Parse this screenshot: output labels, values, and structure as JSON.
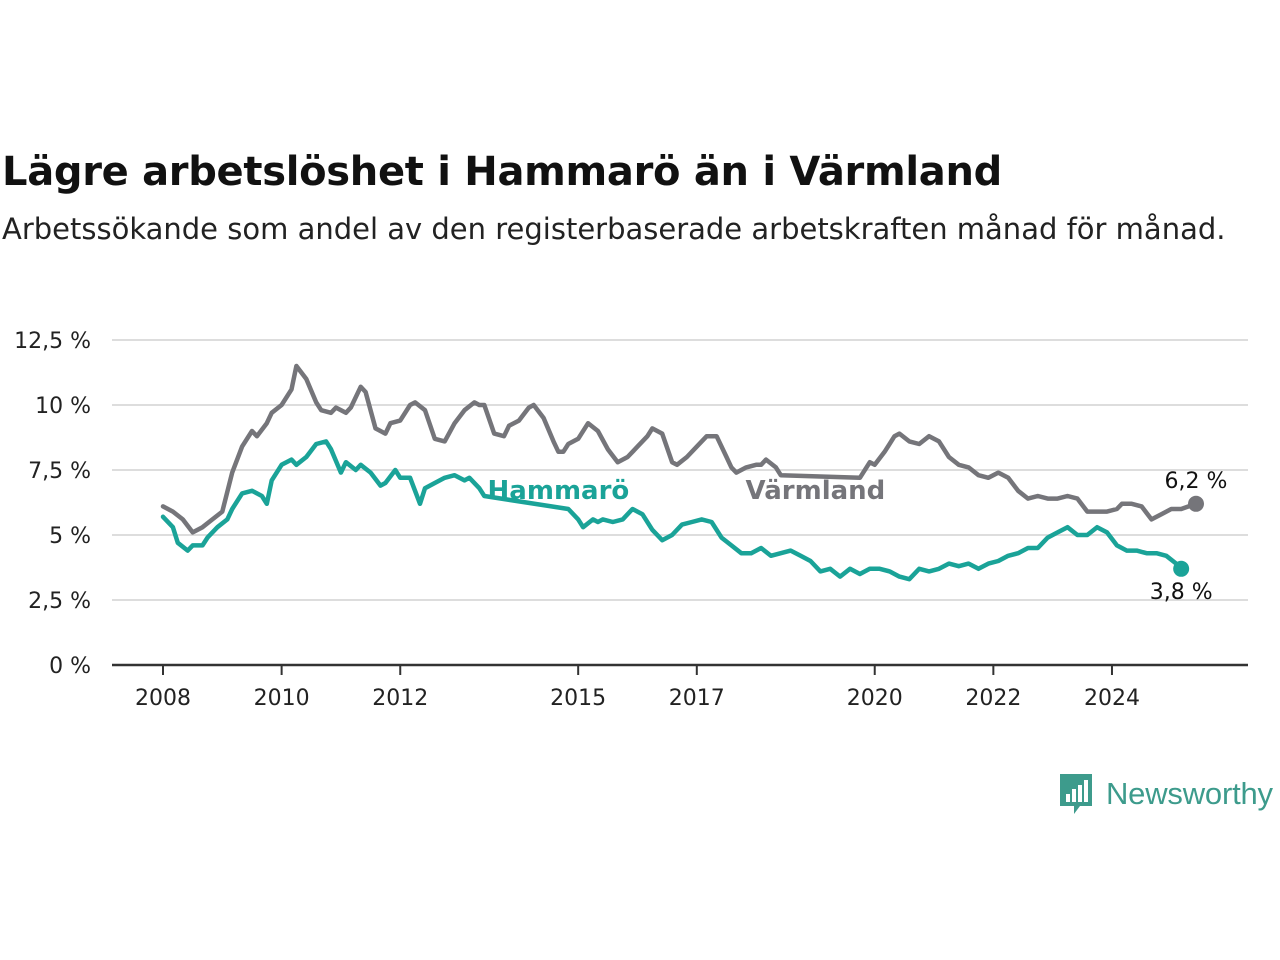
{
  "title": "Lägre arbetslöshet i Hammarö än i Värmland",
  "subtitle": "Arbetssökande som andel av den registerbaserade arbetskraften månad för månad.",
  "brand": {
    "name": "Newsworthy"
  },
  "colors": {
    "hammaro": "#1aa398",
    "varmland": "#75757a",
    "grid": "#dddddd",
    "axis": "#333333",
    "brand": "#3d9b8c"
  },
  "chart_data": {
    "type": "line",
    "title": "Lägre arbetslöshet i Hammarö än i Värmland",
    "subtitle": "Arbetssökande som andel av den registerbaserade arbetskraften månad för månad.",
    "xlabel": "",
    "ylabel": "",
    "y_unit": "%",
    "ylim": [
      0,
      12.5
    ],
    "xlim": [
      "2008-01",
      "2025-06"
    ],
    "grid": true,
    "y_ticks": [
      0,
      2.5,
      5,
      7.5,
      10,
      12.5
    ],
    "y_tick_labels": [
      "0 %",
      "2,5 %",
      "5 %",
      "7,5 %",
      "10 %",
      "12,5 %"
    ],
    "x_ticks": [
      "2008-01",
      "2010-01",
      "2012-01",
      "2015-01",
      "2017-01",
      "2020-01",
      "2022-01",
      "2024-01"
    ],
    "x_tick_labels": [
      "2008",
      "2010",
      "2012",
      "2015",
      "2017",
      "2020",
      "2022",
      "2024"
    ],
    "series": [
      {
        "name": "Värmland",
        "color": "#75757a",
        "end_label": "6,2 %",
        "points": [
          [
            "2008-01",
            6.1
          ],
          [
            "2008-03",
            5.9
          ],
          [
            "2008-05",
            5.6
          ],
          [
            "2008-07",
            5.1
          ],
          [
            "2008-09",
            5.3
          ],
          [
            "2008-11",
            5.6
          ],
          [
            "2009-01",
            5.9
          ],
          [
            "2009-03",
            7.4
          ],
          [
            "2009-05",
            8.4
          ],
          [
            "2009-07",
            9.0
          ],
          [
            "2009-08",
            8.8
          ],
          [
            "2009-10",
            9.3
          ],
          [
            "2009-11",
            9.7
          ],
          [
            "2010-01",
            10.0
          ],
          [
            "2010-03",
            10.6
          ],
          [
            "2010-04",
            11.5
          ],
          [
            "2010-06",
            11.0
          ],
          [
            "2010-08",
            10.1
          ],
          [
            "2010-09",
            9.8
          ],
          [
            "2010-11",
            9.7
          ],
          [
            "2010-12",
            9.9
          ],
          [
            "2011-02",
            9.7
          ],
          [
            "2011-03",
            9.9
          ],
          [
            "2011-05",
            10.7
          ],
          [
            "2011-06",
            10.5
          ],
          [
            "2011-08",
            9.1
          ],
          [
            "2011-10",
            8.9
          ],
          [
            "2011-11",
            9.3
          ],
          [
            "2012-01",
            9.4
          ],
          [
            "2012-03",
            10.0
          ],
          [
            "2012-04",
            10.1
          ],
          [
            "2012-06",
            9.8
          ],
          [
            "2012-08",
            8.7
          ],
          [
            "2012-10",
            8.6
          ],
          [
            "2012-12",
            9.3
          ],
          [
            "2013-02",
            9.8
          ],
          [
            "2013-04",
            10.1
          ],
          [
            "2013-05",
            10.0
          ],
          [
            "2013-06",
            10.0
          ],
          [
            "2013-08",
            8.9
          ],
          [
            "2013-10",
            8.8
          ],
          [
            "2013-11",
            9.2
          ],
          [
            "2014-01",
            9.4
          ],
          [
            "2014-03",
            9.9
          ],
          [
            "2014-04",
            10.0
          ],
          [
            "2014-06",
            9.5
          ],
          [
            "2014-08",
            8.6
          ],
          [
            "2014-09",
            8.2
          ],
          [
            "2014-10",
            8.2
          ],
          [
            "2014-11",
            8.5
          ],
          [
            "2015-01",
            8.7
          ],
          [
            "2015-03",
            9.3
          ],
          [
            "2015-05",
            9.0
          ],
          [
            "2015-07",
            8.3
          ],
          [
            "2015-09",
            7.8
          ],
          [
            "2015-11",
            8.0
          ],
          [
            "2016-01",
            8.4
          ],
          [
            "2016-03",
            8.8
          ],
          [
            "2016-04",
            9.1
          ],
          [
            "2016-06",
            8.9
          ],
          [
            "2016-08",
            7.8
          ],
          [
            "2016-09",
            7.7
          ],
          [
            "2016-11",
            8.0
          ],
          [
            "2017-01",
            8.4
          ],
          [
            "2017-03",
            8.8
          ],
          [
            "2017-05",
            8.8
          ],
          [
            "2017-07",
            8.0
          ],
          [
            "2017-08",
            7.6
          ],
          [
            "2017-09",
            7.4
          ],
          [
            "2017-11",
            7.6
          ],
          [
            "2018-01",
            7.7
          ],
          [
            "2018-02",
            7.7
          ],
          [
            "2018-03",
            7.9
          ],
          [
            "2018-05",
            7.6
          ],
          [
            "2018-06",
            7.3
          ],
          [
            "2019-10",
            7.2
          ],
          [
            "2019-12",
            7.8
          ],
          [
            "2020-01",
            7.7
          ],
          [
            "2020-03",
            8.2
          ],
          [
            "2020-05",
            8.8
          ],
          [
            "2020-06",
            8.9
          ],
          [
            "2020-08",
            8.6
          ],
          [
            "2020-10",
            8.5
          ],
          [
            "2020-12",
            8.8
          ],
          [
            "2021-02",
            8.6
          ],
          [
            "2021-04",
            8.0
          ],
          [
            "2021-06",
            7.7
          ],
          [
            "2021-08",
            7.6
          ],
          [
            "2021-10",
            7.3
          ],
          [
            "2021-12",
            7.2
          ],
          [
            "2022-02",
            7.4
          ],
          [
            "2022-04",
            7.2
          ],
          [
            "2022-06",
            6.7
          ],
          [
            "2022-08",
            6.4
          ],
          [
            "2022-10",
            6.5
          ],
          [
            "2022-12",
            6.4
          ],
          [
            "2023-02",
            6.4
          ],
          [
            "2023-04",
            6.5
          ],
          [
            "2023-06",
            6.4
          ],
          [
            "2023-08",
            5.9
          ],
          [
            "2023-10",
            5.9
          ],
          [
            "2023-12",
            5.9
          ],
          [
            "2024-02",
            6.0
          ],
          [
            "2024-03",
            6.2
          ],
          [
            "2024-05",
            6.2
          ],
          [
            "2024-07",
            6.1
          ],
          [
            "2024-09",
            5.6
          ],
          [
            "2024-11",
            5.8
          ],
          [
            "2025-01",
            6.0
          ],
          [
            "2025-03",
            6.0
          ],
          [
            "2025-06",
            6.2
          ]
        ]
      },
      {
        "name": "Hammarö",
        "color": "#1aa398",
        "end_label": "3,8 %",
        "points": [
          [
            "2008-01",
            5.7
          ],
          [
            "2008-03",
            5.3
          ],
          [
            "2008-04",
            4.7
          ],
          [
            "2008-06",
            4.4
          ],
          [
            "2008-07",
            4.6
          ],
          [
            "2008-09",
            4.6
          ],
          [
            "2008-10",
            4.9
          ],
          [
            "2008-12",
            5.3
          ],
          [
            "2009-02",
            5.6
          ],
          [
            "2009-03",
            6.0
          ],
          [
            "2009-05",
            6.6
          ],
          [
            "2009-07",
            6.7
          ],
          [
            "2009-09",
            6.5
          ],
          [
            "2009-10",
            6.2
          ],
          [
            "2009-11",
            7.1
          ],
          [
            "2010-01",
            7.7
          ],
          [
            "2010-03",
            7.9
          ],
          [
            "2010-04",
            7.7
          ],
          [
            "2010-06",
            8.0
          ],
          [
            "2010-08",
            8.5
          ],
          [
            "2010-10",
            8.6
          ],
          [
            "2010-11",
            8.3
          ],
          [
            "2011-01",
            7.4
          ],
          [
            "2011-02",
            7.8
          ],
          [
            "2011-04",
            7.5
          ],
          [
            "2011-05",
            7.7
          ],
          [
            "2011-07",
            7.4
          ],
          [
            "2011-09",
            6.9
          ],
          [
            "2011-10",
            7.0
          ],
          [
            "2011-12",
            7.5
          ],
          [
            "2012-01",
            7.2
          ],
          [
            "2012-03",
            7.2
          ],
          [
            "2012-05",
            6.2
          ],
          [
            "2012-06",
            6.8
          ],
          [
            "2012-08",
            7.0
          ],
          [
            "2012-10",
            7.2
          ],
          [
            "2012-12",
            7.3
          ],
          [
            "2013-02",
            7.1
          ],
          [
            "2013-03",
            7.2
          ],
          [
            "2013-05",
            6.8
          ],
          [
            "2013-06",
            6.5
          ],
          [
            "2014-11",
            6.0
          ],
          [
            "2015-01",
            5.6
          ],
          [
            "2015-02",
            5.3
          ],
          [
            "2015-04",
            5.6
          ],
          [
            "2015-05",
            5.5
          ],
          [
            "2015-06",
            5.6
          ],
          [
            "2015-08",
            5.5
          ],
          [
            "2015-10",
            5.6
          ],
          [
            "2015-12",
            6.0
          ],
          [
            "2016-02",
            5.8
          ],
          [
            "2016-04",
            5.2
          ],
          [
            "2016-06",
            4.8
          ],
          [
            "2016-08",
            5.0
          ],
          [
            "2016-10",
            5.4
          ],
          [
            "2016-12",
            5.5
          ],
          [
            "2017-02",
            5.6
          ],
          [
            "2017-04",
            5.5
          ],
          [
            "2017-06",
            4.9
          ],
          [
            "2017-08",
            4.6
          ],
          [
            "2017-10",
            4.3
          ],
          [
            "2017-12",
            4.3
          ],
          [
            "2018-02",
            4.5
          ],
          [
            "2018-04",
            4.2
          ],
          [
            "2018-06",
            4.3
          ],
          [
            "2018-08",
            4.4
          ],
          [
            "2018-10",
            4.2
          ],
          [
            "2018-12",
            4.0
          ],
          [
            "2019-02",
            3.6
          ],
          [
            "2019-04",
            3.7
          ],
          [
            "2019-06",
            3.4
          ],
          [
            "2019-08",
            3.7
          ],
          [
            "2019-10",
            3.5
          ],
          [
            "2019-12",
            3.7
          ],
          [
            "2020-02",
            3.7
          ],
          [
            "2020-04",
            3.6
          ],
          [
            "2020-06",
            3.4
          ],
          [
            "2020-08",
            3.3
          ],
          [
            "2020-10",
            3.7
          ],
          [
            "2020-12",
            3.6
          ],
          [
            "2021-02",
            3.7
          ],
          [
            "2021-04",
            3.9
          ],
          [
            "2021-06",
            3.8
          ],
          [
            "2021-08",
            3.9
          ],
          [
            "2021-10",
            3.7
          ],
          [
            "2021-12",
            3.9
          ],
          [
            "2022-02",
            4.0
          ],
          [
            "2022-04",
            4.2
          ],
          [
            "2022-06",
            4.3
          ],
          [
            "2022-08",
            4.5
          ],
          [
            "2022-10",
            4.5
          ],
          [
            "2022-12",
            4.9
          ],
          [
            "2023-02",
            5.1
          ],
          [
            "2023-04",
            5.3
          ],
          [
            "2023-06",
            5.0
          ],
          [
            "2023-08",
            5.0
          ],
          [
            "2023-10",
            5.3
          ],
          [
            "2023-12",
            5.1
          ],
          [
            "2024-02",
            4.6
          ],
          [
            "2024-04",
            4.4
          ],
          [
            "2024-06",
            4.4
          ],
          [
            "2024-08",
            4.3
          ],
          [
            "2024-10",
            4.3
          ],
          [
            "2024-12",
            4.2
          ],
          [
            "2025-02",
            3.9
          ],
          [
            "2025-03",
            3.7
          ]
        ]
      }
    ],
    "annotations": [
      {
        "text": "Hammarö",
        "series": "Hammarö",
        "x": "2014-09",
        "y": 6.7
      },
      {
        "text": "Värmland",
        "series": "Värmland",
        "x": "2019-01",
        "y": 6.7
      }
    ]
  }
}
